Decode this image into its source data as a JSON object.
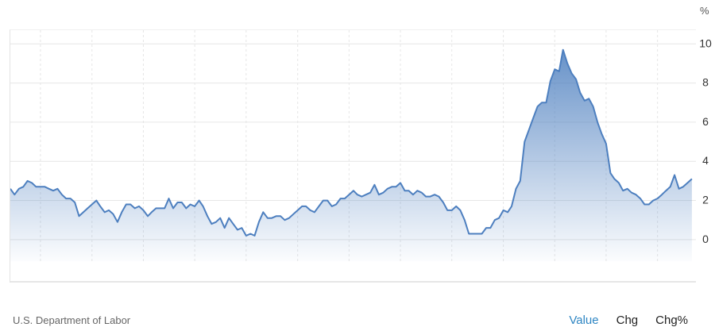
{
  "unit_label": "%",
  "source": "U.S. Department of Labor",
  "tabs": [
    {
      "label": "Value",
      "active": true
    },
    {
      "label": "Chg",
      "active": false
    },
    {
      "label": "Chg%",
      "active": false
    }
  ],
  "colors": {
    "line": "#4d7fbf",
    "fill_top": "#4d7fbf",
    "grid": "#e6e6e6",
    "axis_text": "#333333",
    "active_tab": "#2f86c3"
  },
  "chart_data": {
    "type": "area",
    "title": "",
    "xlabel": "",
    "ylabel": "",
    "ylim": [
      -1.1,
      10.7
    ],
    "xlim": [
      "2011-06-01",
      "2024-09-30"
    ],
    "grid": true,
    "x_ticks": [
      "2012",
      "2013",
      "2014",
      "2015",
      "2016",
      "2017",
      "2018",
      "2019",
      "2020",
      "2021",
      "2022",
      "2023",
      "2024"
    ],
    "y_ticks": [
      0,
      2,
      4,
      6,
      8,
      10
    ],
    "series": [
      {
        "name": "",
        "x": [
          "2011-06",
          "2011-07",
          "2011-08",
          "2011-09",
          "2011-10",
          "2011-11",
          "2011-12",
          "2012-01",
          "2012-02",
          "2012-03",
          "2012-04",
          "2012-05",
          "2012-06",
          "2012-07",
          "2012-08",
          "2012-09",
          "2012-10",
          "2012-11",
          "2012-12",
          "2013-01",
          "2013-02",
          "2013-03",
          "2013-04",
          "2013-05",
          "2013-06",
          "2013-07",
          "2013-08",
          "2013-09",
          "2013-10",
          "2013-11",
          "2013-12",
          "2014-01",
          "2014-02",
          "2014-03",
          "2014-04",
          "2014-05",
          "2014-06",
          "2014-07",
          "2014-08",
          "2014-09",
          "2014-10",
          "2014-11",
          "2014-12",
          "2015-01",
          "2015-02",
          "2015-03",
          "2015-04",
          "2015-05",
          "2015-06",
          "2015-07",
          "2015-08",
          "2015-09",
          "2015-10",
          "2015-11",
          "2015-12",
          "2016-01",
          "2016-02",
          "2016-03",
          "2016-04",
          "2016-05",
          "2016-06",
          "2016-07",
          "2016-08",
          "2016-09",
          "2016-10",
          "2016-11",
          "2016-12",
          "2017-01",
          "2017-02",
          "2017-03",
          "2017-04",
          "2017-05",
          "2017-06",
          "2017-07",
          "2017-08",
          "2017-09",
          "2017-10",
          "2017-11",
          "2017-12",
          "2018-01",
          "2018-02",
          "2018-03",
          "2018-04",
          "2018-05",
          "2018-06",
          "2018-07",
          "2018-08",
          "2018-09",
          "2018-10",
          "2018-11",
          "2018-12",
          "2019-01",
          "2019-02",
          "2019-03",
          "2019-04",
          "2019-05",
          "2019-06",
          "2019-07",
          "2019-08",
          "2019-09",
          "2019-10",
          "2019-11",
          "2019-12",
          "2020-01",
          "2020-02",
          "2020-03",
          "2020-04",
          "2020-05",
          "2020-06",
          "2020-07",
          "2020-08",
          "2020-09",
          "2020-10",
          "2020-11",
          "2020-12",
          "2021-01",
          "2021-02",
          "2021-03",
          "2021-04",
          "2021-05",
          "2021-06",
          "2021-07",
          "2021-08",
          "2021-09",
          "2021-10",
          "2021-11",
          "2021-12",
          "2022-01",
          "2022-02",
          "2022-03",
          "2022-04",
          "2022-05",
          "2022-06",
          "2022-07",
          "2022-08",
          "2022-09",
          "2022-10",
          "2022-11",
          "2022-12",
          "2023-01",
          "2023-02",
          "2023-03",
          "2023-04",
          "2023-05",
          "2023-06",
          "2023-07",
          "2023-08",
          "2023-09",
          "2023-10",
          "2023-11",
          "2023-12",
          "2024-01",
          "2024-02",
          "2024-03",
          "2024-04",
          "2024-05",
          "2024-06",
          "2024-07",
          "2024-08",
          "2024-09"
        ],
        "values": [
          2.6,
          2.3,
          2.6,
          2.7,
          3.0,
          2.9,
          2.7,
          2.7,
          2.7,
          2.6,
          2.5,
          2.6,
          2.3,
          2.1,
          2.1,
          1.9,
          1.2,
          1.4,
          1.6,
          1.8,
          2.0,
          1.7,
          1.4,
          1.5,
          1.3,
          0.9,
          1.4,
          1.8,
          1.8,
          1.6,
          1.7,
          1.5,
          1.2,
          1.4,
          1.6,
          1.6,
          1.6,
          2.1,
          1.6,
          1.9,
          1.9,
          1.6,
          1.8,
          1.7,
          2.0,
          1.7,
          1.2,
          0.8,
          0.9,
          1.1,
          0.6,
          1.1,
          0.8,
          0.5,
          0.6,
          0.2,
          0.3,
          0.2,
          0.9,
          1.4,
          1.1,
          1.1,
          1.2,
          1.2,
          1.0,
          1.1,
          1.3,
          1.5,
          1.7,
          1.7,
          1.5,
          1.4,
          1.7,
          2.0,
          2.0,
          1.7,
          1.8,
          2.1,
          2.1,
          2.3,
          2.5,
          2.3,
          2.2,
          2.3,
          2.4,
          2.8,
          2.3,
          2.4,
          2.6,
          2.7,
          2.7,
          2.9,
          2.5,
          2.5,
          2.3,
          2.5,
          2.4,
          2.2,
          2.2,
          2.3,
          2.2,
          1.9,
          1.5,
          1.5,
          1.7,
          1.5,
          1.0,
          0.3,
          0.3,
          0.3,
          0.3,
          0.6,
          0.6,
          1.0,
          1.1,
          1.5,
          1.4,
          1.7,
          2.6,
          3.0,
          5.0,
          5.6,
          6.2,
          6.8,
          7.0,
          7.0,
          8.1,
          8.7,
          8.6,
          9.7,
          9.0,
          8.5,
          8.2,
          7.5,
          7.1,
          7.2,
          6.8,
          6.0,
          5.4,
          4.9,
          3.4,
          3.1,
          2.9,
          2.5,
          2.6,
          2.4,
          2.3,
          2.1,
          1.8,
          1.8,
          2.0,
          2.1,
          2.3,
          2.5,
          2.7,
          3.3,
          2.6,
          2.7,
          2.9,
          3.1
        ]
      }
    ]
  }
}
